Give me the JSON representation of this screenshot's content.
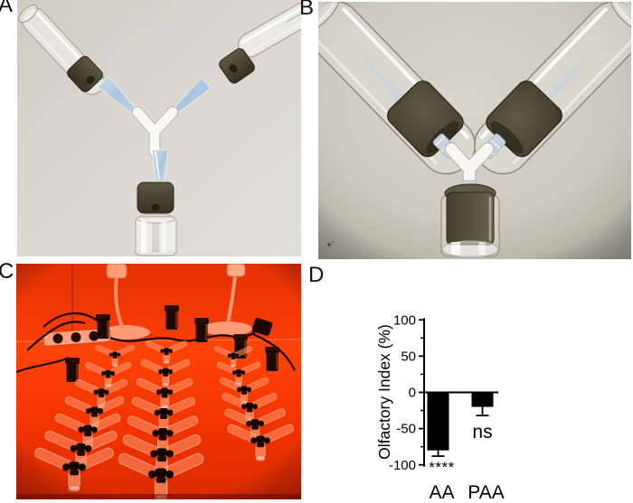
{
  "panel_labels": {
    "a": "A",
    "b": "B",
    "c": "C",
    "d": "D"
  },
  "photos": {
    "a": {
      "description": "Disassembled Y-maze: two angled glass tubes with foam plugs, two blue pipette tips, white Y connector, foam plug and small glass vial"
    },
    "b": {
      "description": "Assembled Y-maze close-up: two glass tubes with dark foam collars joined by a white Y connector above a foam-plugged glass vial"
    },
    "c": {
      "description": "Behavior room under red light: three columns of assembled Y-mazes on a table with two lamps, a power strip and cables"
    }
  },
  "colors": {
    "foam": "#4c4534",
    "pipette_tip": "#b9cfe4",
    "red_room_tint": "#ff3800"
  },
  "chart_data": {
    "type": "bar",
    "title": "",
    "xlabel": "",
    "ylabel": "Olfactory Index (%)",
    "ylim": [
      -100,
      100
    ],
    "yticks": [
      100,
      50,
      0,
      -50,
      -100
    ],
    "minor_yticks": [
      75,
      25,
      -25,
      -75
    ],
    "categories": [
      "AA",
      "PAA"
    ],
    "values": [
      -80,
      -20
    ],
    "errors": [
      8,
      12
    ],
    "error_direction": "negative",
    "significance": [
      "****",
      "ns"
    ],
    "bar_color": "#000000",
    "axis_color": "#000000",
    "grid": false,
    "legend": null
  }
}
